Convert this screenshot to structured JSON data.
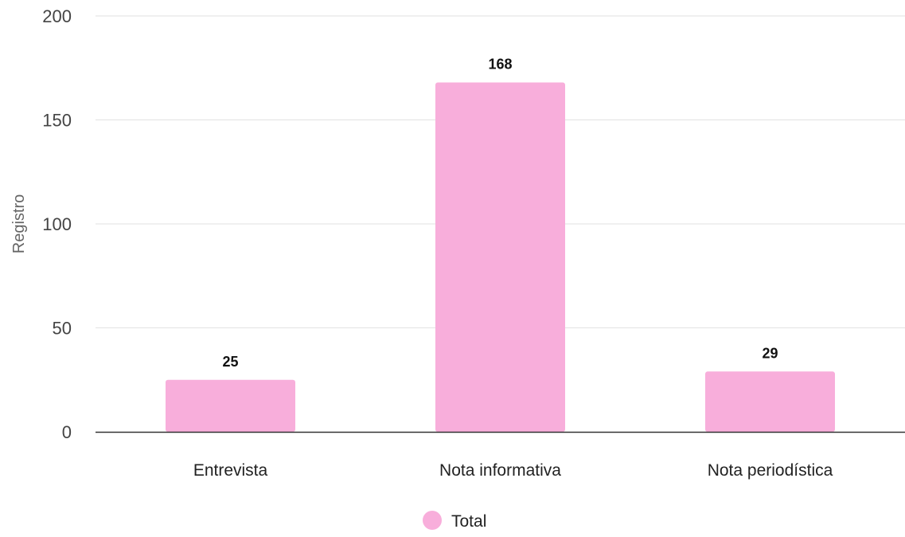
{
  "chart_data": {
    "type": "bar",
    "categories": [
      "Entrevista",
      "Nota informativa",
      "Nota periodística"
    ],
    "series": [
      {
        "name": "Total",
        "values": [
          25,
          168,
          29
        ],
        "color": "#f8aedb"
      }
    ],
    "title": "",
    "xlabel": "",
    "ylabel": "Registro",
    "ylim": [
      0,
      200
    ],
    "yticks": [
      0,
      50,
      100,
      150,
      200
    ],
    "grid": true,
    "legend": "bottom-center",
    "data_labels": true
  }
}
